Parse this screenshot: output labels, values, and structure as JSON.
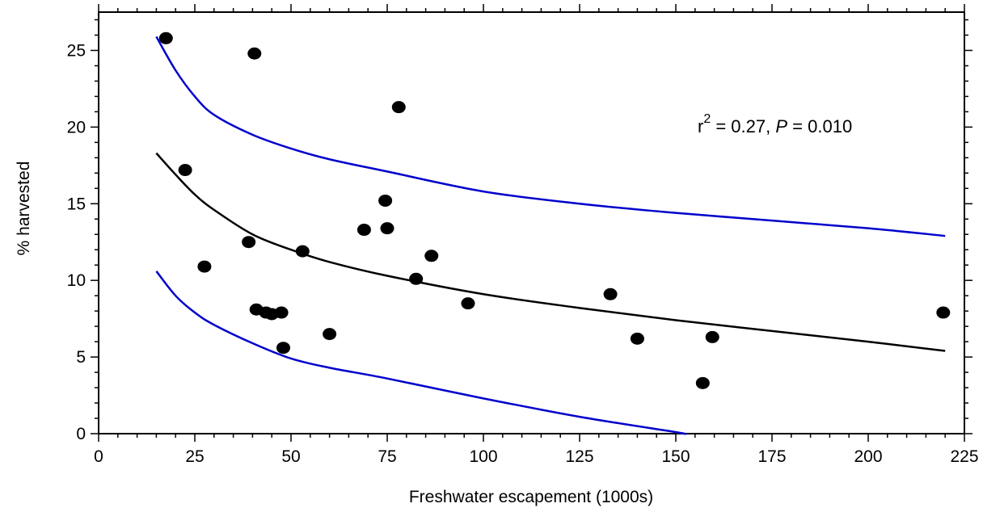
{
  "chart_data": {
    "type": "scatter",
    "title": "",
    "xlabel": "Freshwater escapement (1000s)",
    "ylabel": "% harvested",
    "xlim": [
      0,
      225
    ],
    "ylim": [
      0,
      27.5
    ],
    "xticks": [
      0,
      25,
      50,
      75,
      100,
      125,
      150,
      175,
      200,
      225
    ],
    "yticks": [
      0,
      5,
      10,
      15,
      20,
      25
    ],
    "annotation": {
      "r_prefix": "r",
      "r_exp": "2",
      "r_value": " = 0.27, ",
      "p_label": "P",
      "p_value": " = 0.010"
    },
    "points": [
      {
        "x": 17.5,
        "y": 25.8
      },
      {
        "x": 40.5,
        "y": 24.8
      },
      {
        "x": 78.0,
        "y": 21.3
      },
      {
        "x": 22.5,
        "y": 17.2
      },
      {
        "x": 74.5,
        "y": 15.2
      },
      {
        "x": 69.0,
        "y": 13.3
      },
      {
        "x": 75.0,
        "y": 13.4
      },
      {
        "x": 39.0,
        "y": 12.5
      },
      {
        "x": 53.0,
        "y": 11.9
      },
      {
        "x": 86.5,
        "y": 11.6
      },
      {
        "x": 27.5,
        "y": 10.9
      },
      {
        "x": 82.5,
        "y": 10.1
      },
      {
        "x": 133.0,
        "y": 9.1
      },
      {
        "x": 96.0,
        "y": 8.5
      },
      {
        "x": 41.0,
        "y": 8.1
      },
      {
        "x": 43.5,
        "y": 7.9
      },
      {
        "x": 45.0,
        "y": 7.8
      },
      {
        "x": 47.5,
        "y": 7.9
      },
      {
        "x": 219.5,
        "y": 7.9
      },
      {
        "x": 60.0,
        "y": 6.5
      },
      {
        "x": 140.0,
        "y": 6.2
      },
      {
        "x": 159.5,
        "y": 6.3
      },
      {
        "x": 48.0,
        "y": 5.6
      },
      {
        "x": 157.0,
        "y": 3.3
      }
    ],
    "series": [
      {
        "color": "#000000",
        "x": [
          15,
          20,
          25,
          30,
          40,
          50,
          60,
          75,
          100,
          125,
          150,
          175,
          200,
          220
        ],
        "y": [
          18.3,
          16.9,
          15.6,
          14.6,
          13.0,
          12.0,
          11.2,
          10.3,
          9.1,
          8.2,
          7.4,
          6.7,
          6.0,
          5.4
        ]
      },
      {
        "color": "#0000cc",
        "x": [
          15,
          20,
          25,
          30,
          40,
          50,
          60,
          75,
          100,
          125,
          150,
          175,
          200,
          220
        ],
        "y": [
          25.9,
          23.7,
          22.0,
          20.8,
          19.5,
          18.6,
          17.9,
          17.1,
          15.8,
          15.0,
          14.4,
          13.9,
          13.4,
          12.9
        ]
      },
      {
        "color": "#0000cc",
        "x": [
          15,
          20,
          25,
          30,
          40,
          50,
          60,
          75,
          100,
          125,
          150,
          152
        ],
        "y": [
          10.6,
          9.0,
          7.9,
          7.1,
          5.9,
          4.9,
          4.3,
          3.6,
          2.3,
          1.1,
          0.1,
          0.0
        ]
      }
    ]
  }
}
